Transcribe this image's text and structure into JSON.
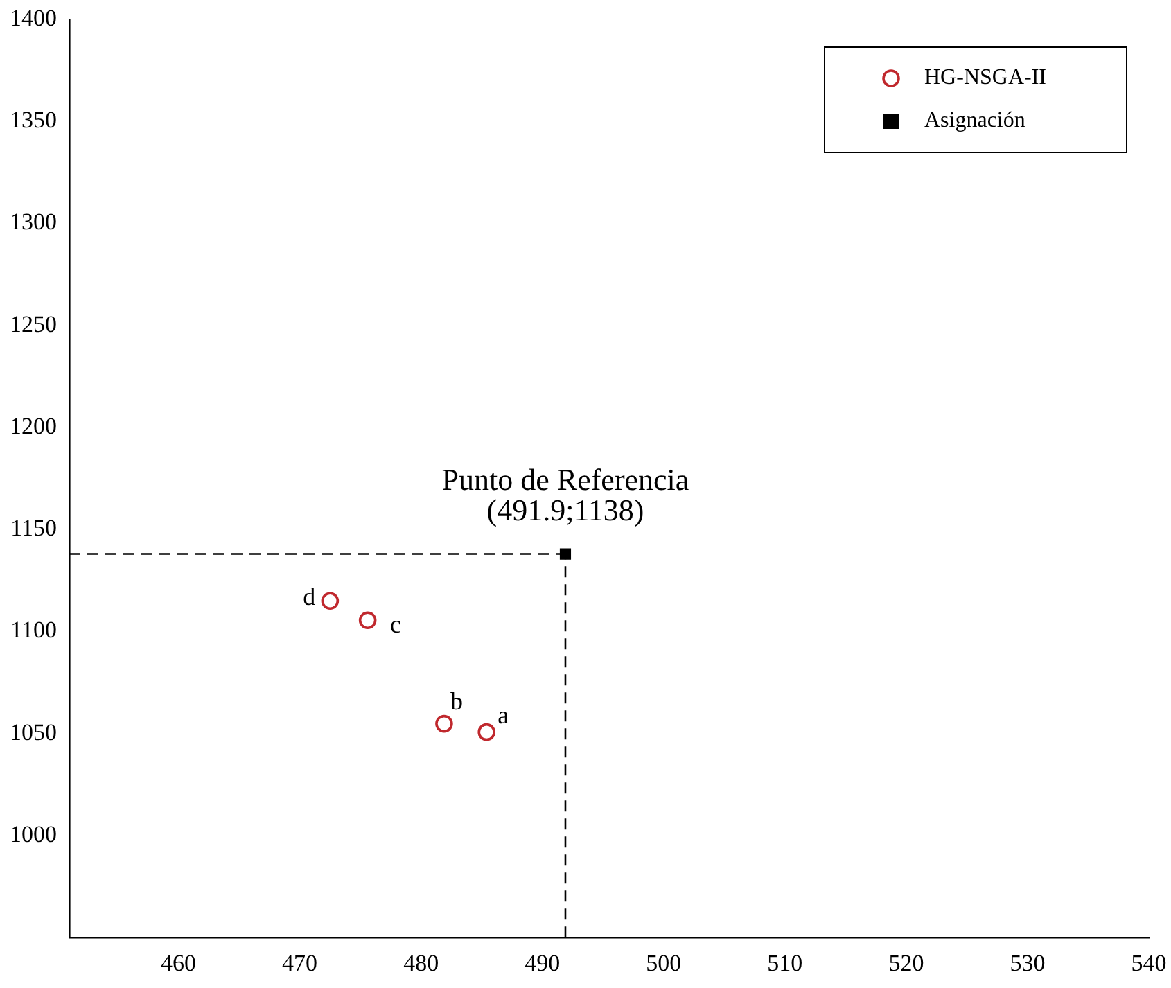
{
  "chart_data": {
    "type": "scatter",
    "series": [
      {
        "name": "HG-NSGA-II",
        "color": "#c0282d",
        "x": [
          485.4,
          481.9,
          475.6,
          472.5
        ],
        "values": [
          1050.7,
          1054.8,
          1105.5,
          1115
        ],
        "marker": "circle"
      },
      {
        "name": "Asignación",
        "color": "#000000",
        "x": [
          491.9
        ],
        "values": [
          1138
        ],
        "marker": "square"
      }
    ],
    "xlim": [
      451,
      540
    ],
    "xticks": [
      460,
      470,
      480,
      490,
      500,
      510,
      520,
      530,
      540
    ],
    "ylim": [
      950,
      1400
    ],
    "yticks": [
      1000,
      1050,
      1100,
      1150,
      1200,
      1250,
      1300,
      1350,
      1400
    ],
    "ref_lines": [
      {
        "axis": "x",
        "value": 491.9,
        "line_style": "dashed",
        "color": "#000000"
      },
      {
        "axis": "y",
        "value": 1138,
        "line_style": "dashed",
        "color": "#000000"
      }
    ],
    "annotations": [
      {
        "text": "Punto de Referencia",
        "x": 491.9,
        "y": 1138
      },
      {
        "text": "(491.9;1138)",
        "x": 491.9,
        "y": 1138
      },
      {
        "text": "a",
        "x": 485.4,
        "y": 1050.7
      },
      {
        "text": "b",
        "x": 481.9,
        "y": 1054.8
      },
      {
        "text": "c",
        "x": 475.6,
        "y": 1105.5
      },
      {
        "text": "d",
        "x": 472.5,
        "y": 1115
      }
    ],
    "grid": false,
    "legend": "top right"
  }
}
